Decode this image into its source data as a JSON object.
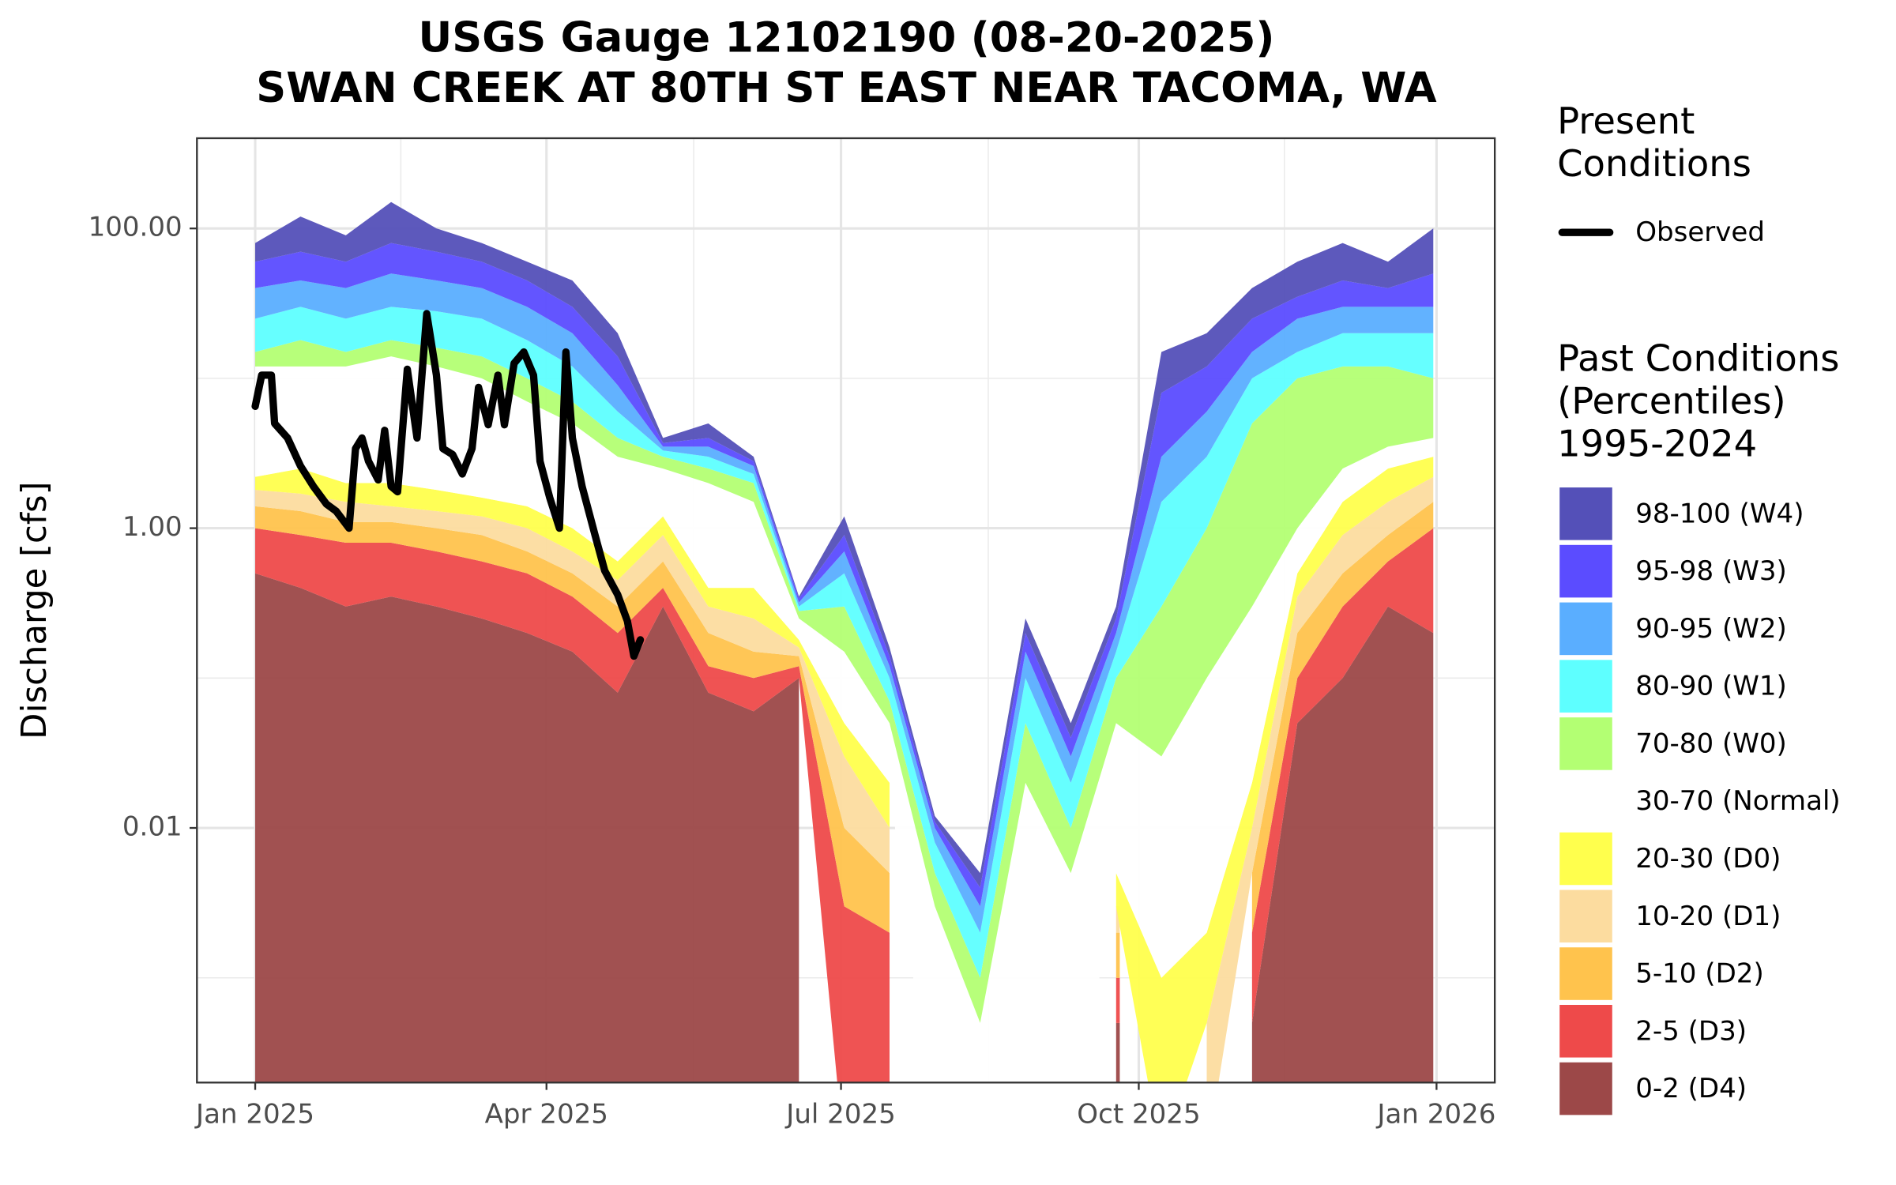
{
  "chart_data": {
    "type": "area",
    "title": [
      "USGS Gauge 12102190 (08-20-2025)",
      "SWAN CREEK AT 80TH ST EAST NEAR TACOMA, WA"
    ],
    "y_label": "Discharge [cfs]",
    "log_y": true,
    "grid": true,
    "legend_position": "right",
    "ylim": [
      0.0002,
      400
    ],
    "yticks": [
      {
        "value": 100,
        "label": "100.00"
      },
      {
        "value": 1,
        "label": "1.00"
      },
      {
        "value": 0.01,
        "label": "0.01"
      }
    ],
    "minor_yticks": [
      10,
      0.1,
      0.001
    ],
    "xlim": [
      -18,
      383
    ],
    "xticks": [
      {
        "value": 0,
        "label": "Jan 2025"
      },
      {
        "value": 90,
        "label": "Apr 2025"
      },
      {
        "value": 181,
        "label": "Jul 2025"
      },
      {
        "value": 273,
        "label": "Oct 2025"
      },
      {
        "value": 365,
        "label": "Jan 2026"
      }
    ],
    "minor_xticks": [
      45,
      135.5,
      226.5,
      318
    ],
    "legend_title_present": [
      "Present",
      "Conditions"
    ],
    "legend_title_past": [
      "Past Conditions",
      "(Percentiles)",
      "1995-2024"
    ],
    "observed": {
      "name": "Observed",
      "color": "#000000",
      "x": [
        0,
        2,
        5,
        6,
        10,
        14,
        18,
        22,
        25,
        29,
        31,
        33,
        35,
        38,
        40,
        42,
        44,
        47,
        50,
        53,
        56,
        58,
        61,
        64,
        67,
        69,
        72,
        75,
        77,
        80,
        83,
        86,
        88,
        91,
        94,
        96,
        98,
        101,
        105,
        108,
        112,
        115,
        117,
        119
      ],
      "values": [
        6.5,
        10.5,
        10.5,
        5,
        4,
        2.6,
        1.9,
        1.45,
        1.3,
        1.0,
        3.4,
        4,
        2.8,
        2.1,
        4.5,
        1.9,
        1.75,
        11.5,
        4,
        27,
        10.5,
        3.4,
        3.1,
        2.3,
        3.4,
        8.7,
        4.9,
        10.5,
        4.9,
        12.6,
        15,
        10.5,
        2.8,
        1.6,
        1.0,
        15,
        4,
        1.9,
        0.9,
        0.52,
        0.36,
        0.24,
        0.14,
        0.18
      ]
    },
    "x": [
      0,
      14,
      28,
      42,
      56,
      70,
      84,
      98,
      112,
      126,
      140,
      154,
      168,
      182,
      196,
      210,
      224,
      238,
      252,
      266,
      280,
      294,
      308,
      322,
      336,
      350,
      364
    ],
    "series": [
      {
        "name": "98-100 (W4)",
        "color": "#5450b8",
        "values": [
          80,
          120,
          90,
          150,
          100,
          80,
          60,
          45,
          20,
          4,
          5,
          3,
          0.35,
          1.2,
          0.16,
          0.012,
          0.005,
          0.25,
          0.05,
          0.3,
          15,
          20,
          40,
          60,
          80,
          60,
          100
        ]
      },
      {
        "name": "95-98 (W3)",
        "color": "#5b4cff",
        "values": [
          60,
          70,
          60,
          80,
          70,
          60,
          45,
          30,
          14,
          3.7,
          4,
          2.8,
          0.34,
          0.9,
          0.14,
          0.011,
          0.004,
          0.2,
          0.04,
          0.25,
          8,
          12,
          25,
          35,
          45,
          40,
          50
        ]
      },
      {
        "name": "90-95 (W2)",
        "color": "#5aaeff",
        "values": [
          40,
          45,
          40,
          50,
          45,
          40,
          30,
          20,
          9,
          3.5,
          3.5,
          2.6,
          0.32,
          0.7,
          0.12,
          0.01,
          0.003,
          0.15,
          0.03,
          0.2,
          3,
          6,
          15,
          25,
          30,
          30,
          30
        ]
      },
      {
        "name": "80-90 (W1)",
        "color": "#5effff",
        "values": [
          25,
          30,
          25,
          30,
          28,
          25,
          18,
          12,
          6,
          3.3,
          3,
          2.3,
          0.3,
          0.5,
          0.1,
          0.008,
          0.002,
          0.1,
          0.02,
          0.15,
          1.5,
          3,
          10,
          15,
          20,
          20,
          20
        ]
      },
      {
        "name": "70-80 (W0)",
        "color": "#b3ff73",
        "values": [
          15,
          18,
          15,
          18,
          16,
          14,
          10,
          7,
          4,
          3,
          2.5,
          2,
          0.28,
          0.3,
          0.07,
          0.005,
          0.001,
          0.05,
          0.01,
          0.1,
          0.3,
          1,
          5,
          10,
          12,
          12,
          10
        ]
      },
      {
        "name": "30-70 (Normal)",
        "color": "#ffffff",
        "values": [
          12,
          12,
          12,
          14,
          12,
          10,
          7,
          5,
          3,
          2.5,
          2,
          1.5,
          0.25,
          0.15,
          0.05,
          0.003,
          0.0005,
          0.02,
          0.005,
          0.05,
          0.03,
          0.1,
          0.3,
          1,
          2.5,
          3.5,
          4
        ]
      },
      {
        "name": "20-30 (D0)",
        "color": "#ffff4d",
        "values": [
          2.2,
          2.5,
          2.0,
          2.0,
          1.8,
          1.6,
          1.4,
          1.0,
          0.6,
          1.2,
          0.4,
          0.4,
          0.18,
          0.05,
          0.02,
          null,
          null,
          null,
          null,
          0.005,
          0.001,
          0.002,
          0.02,
          0.5,
          1.5,
          2.5,
          3
        ]
      },
      {
        "name": "10-20 (D1)",
        "color": "#fcdc9f",
        "values": [
          1.8,
          1.7,
          1.5,
          1.4,
          1.3,
          1.2,
          1.0,
          0.7,
          0.45,
          0.9,
          0.3,
          0.25,
          0.16,
          0.03,
          0.01,
          null,
          null,
          null,
          null,
          0.003,
          null,
          0.0005,
          0.01,
          0.35,
          0.9,
          1.5,
          2.2
        ]
      },
      {
        "name": "5-10 (D2)",
        "color": "#ffc34d",
        "values": [
          1.4,
          1.3,
          1.1,
          1.1,
          1.0,
          0.9,
          0.7,
          0.5,
          0.3,
          0.6,
          0.2,
          0.15,
          0.14,
          0.01,
          0.005,
          null,
          null,
          null,
          null,
          0.002,
          null,
          null,
          0.005,
          0.2,
          0.5,
          0.9,
          1.5
        ]
      },
      {
        "name": "2-5 (D3)",
        "color": "#ee4a4a",
        "values": [
          1.0,
          0.9,
          0.8,
          0.8,
          0.7,
          0.6,
          0.5,
          0.35,
          0.2,
          0.4,
          0.12,
          0.1,
          0.12,
          0.003,
          0.002,
          null,
          null,
          null,
          null,
          0.001,
          null,
          null,
          0.002,
          0.1,
          0.3,
          0.6,
          1.0
        ]
      },
      {
        "name": "0-2 (D4)",
        "color": "#9c4848",
        "values": [
          0.5,
          0.4,
          0.3,
          0.35,
          0.3,
          0.25,
          0.2,
          0.15,
          0.08,
          0.3,
          0.08,
          0.06,
          0.1,
          null,
          null,
          null,
          null,
          null,
          null,
          0.0005,
          null,
          null,
          0.0005,
          0.05,
          0.1,
          0.3,
          0.2
        ]
      }
    ]
  }
}
